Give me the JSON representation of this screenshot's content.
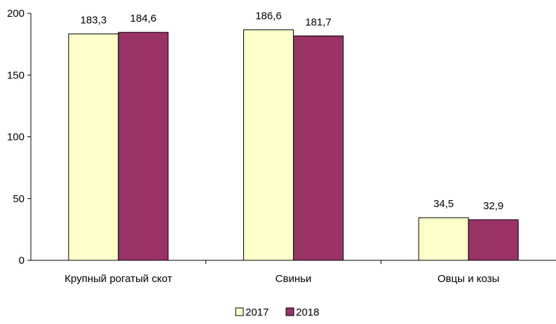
{
  "chart_data": {
    "type": "bar",
    "categories": [
      "Крупный рогатый скот",
      "Свиньи",
      "Овцы и козы"
    ],
    "series": [
      {
        "name": "2017",
        "values": [
          183.3,
          186.6,
          34.5
        ],
        "value_labels": [
          "183,3",
          "186,6",
          "34,5"
        ],
        "color": "#ffffcc"
      },
      {
        "name": "2018",
        "values": [
          184.6,
          181.7,
          32.9
        ],
        "value_labels": [
          "184,6",
          "181,7",
          "32,9"
        ],
        "color": "#993366"
      }
    ],
    "y_ticks": [
      0,
      50,
      100,
      150,
      200
    ],
    "ylim": [
      0,
      200
    ],
    "grid": false,
    "legend_position": "bottom",
    "bar_border_color": "#000000"
  }
}
